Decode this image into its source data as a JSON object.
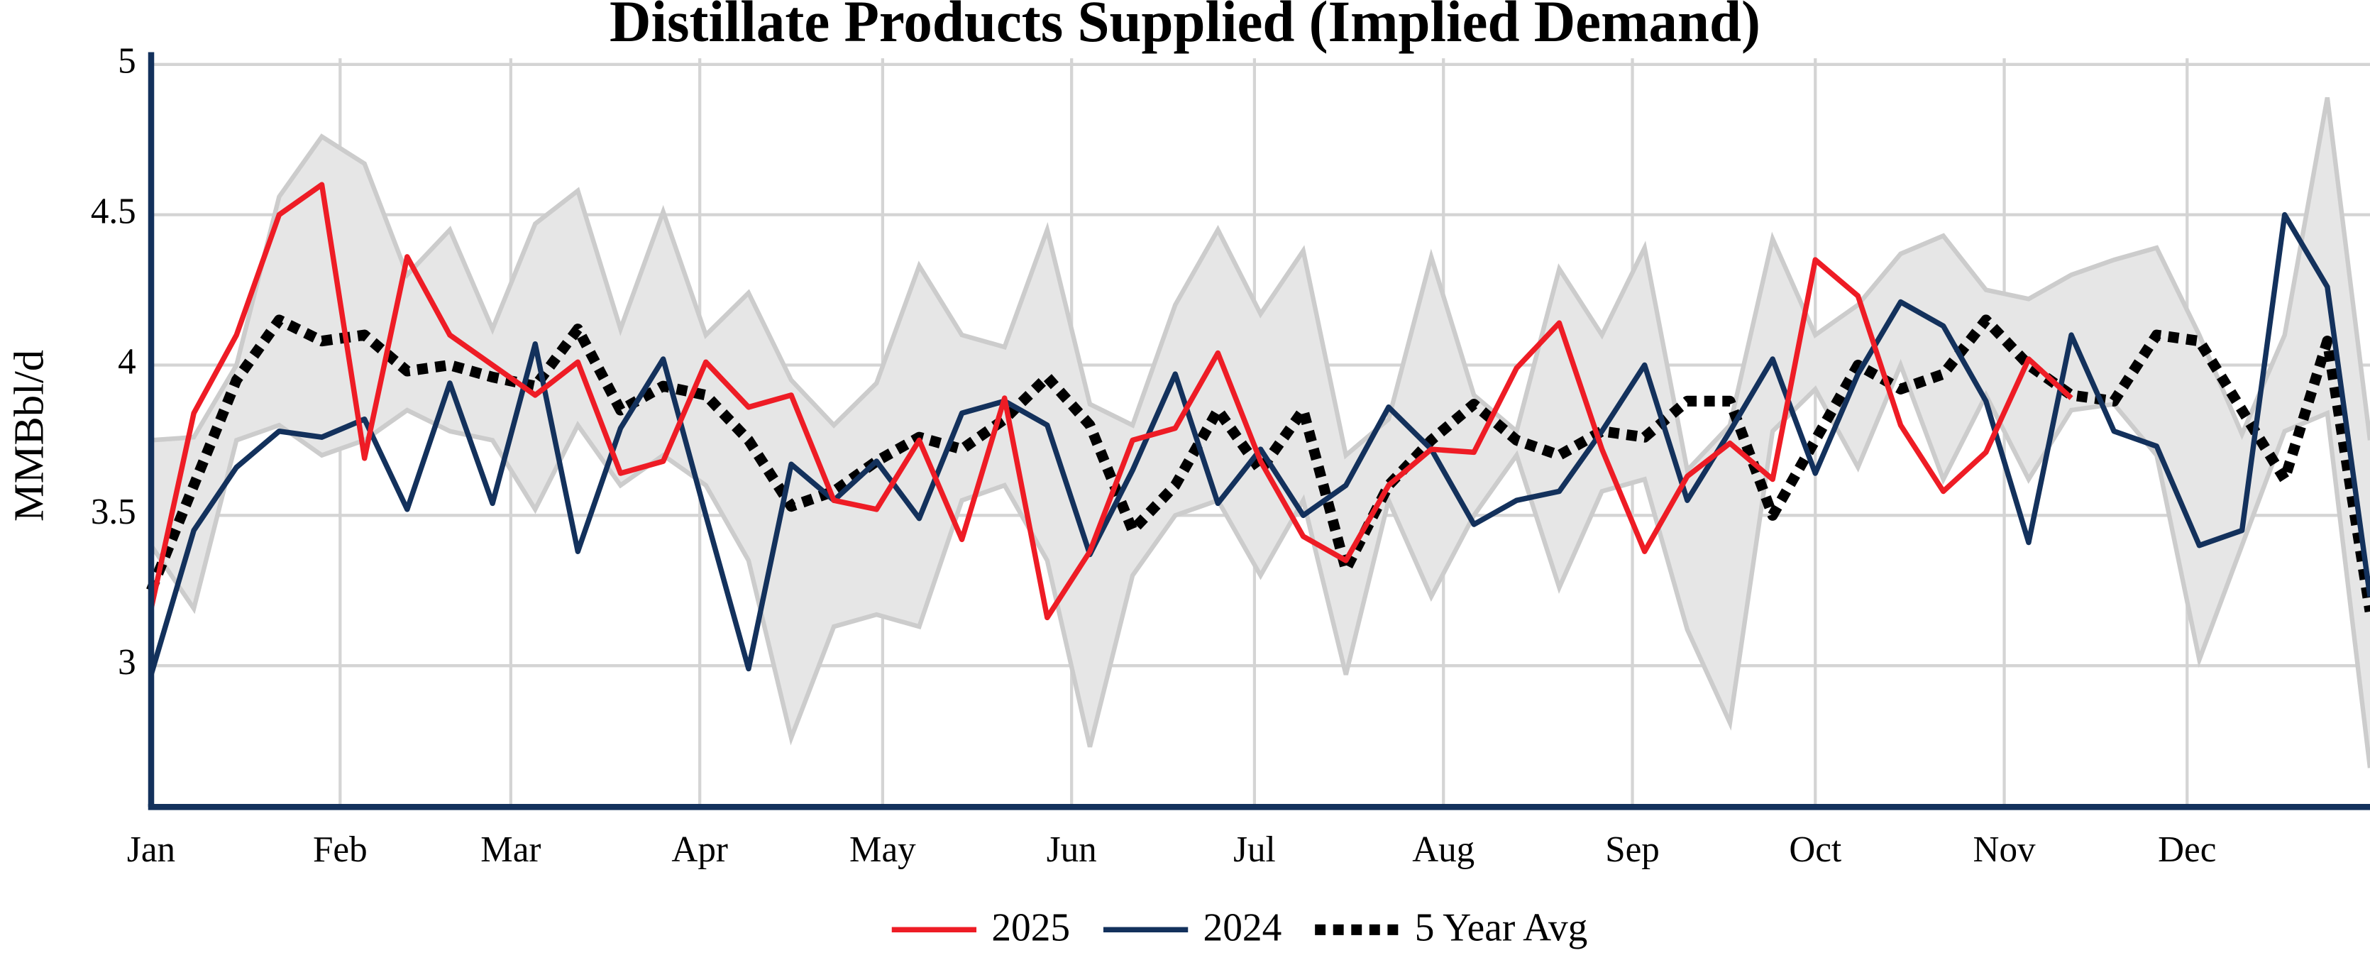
{
  "chart_data": {
    "type": "line",
    "title": "Distillate Products Supplied (Implied Demand)",
    "ylabel": "MMBbl/d",
    "x": [
      1,
      8,
      15,
      22,
      29,
      36,
      43,
      50,
      57,
      64,
      71,
      78,
      85,
      92,
      99,
      106,
      113,
      120,
      127,
      134,
      141,
      148,
      155,
      162,
      169,
      176,
      183,
      190,
      197,
      204,
      211,
      218,
      225,
      232,
      239,
      246,
      253,
      260,
      267,
      274,
      281,
      288,
      295,
      302,
      309,
      316,
      323,
      330,
      337,
      344,
      351,
      358,
      365
    ],
    "xlim": [
      1,
      365
    ],
    "xticks": [
      {
        "value": 1,
        "label": "Jan"
      },
      {
        "value": 32,
        "label": "Feb"
      },
      {
        "value": 60,
        "label": "Mar"
      },
      {
        "value": 91,
        "label": "Apr"
      },
      {
        "value": 121,
        "label": "May"
      },
      {
        "value": 152,
        "label": "Jun"
      },
      {
        "value": 182,
        "label": "Jul"
      },
      {
        "value": 213,
        "label": "Aug"
      },
      {
        "value": 244,
        "label": "Sep"
      },
      {
        "value": 274,
        "label": "Oct"
      },
      {
        "value": 305,
        "label": "Nov"
      },
      {
        "value": 335,
        "label": "Dec"
      }
    ],
    "ylim": [
      2.53,
      5
    ],
    "yticks": [
      3,
      3.5,
      4,
      4.5,
      5
    ],
    "grid": true,
    "range": {
      "color": "#e6e6e6",
      "edge_color": "#cccccc",
      "high": [
        3.75,
        3.76,
        4.0,
        4.56,
        4.76,
        4.67,
        4.3,
        4.45,
        4.12,
        4.47,
        4.58,
        4.12,
        4.51,
        4.1,
        4.24,
        3.95,
        3.8,
        3.94,
        4.33,
        4.1,
        4.06,
        4.45,
        3.87,
        3.8,
        4.2,
        4.45,
        4.17,
        4.38,
        3.7,
        3.82,
        4.36,
        3.9,
        3.78,
        4.32,
        4.1,
        4.39,
        3.65,
        3.8,
        4.42,
        4.1,
        4.2,
        4.37,
        4.43,
        4.25,
        4.22,
        4.3,
        4.35,
        4.39,
        4.1,
        3.77,
        4.1,
        4.89,
        3.75
      ],
      "low": [
        3.4,
        3.19,
        3.75,
        3.8,
        3.7,
        3.75,
        3.85,
        3.78,
        3.75,
        3.52,
        3.8,
        3.6,
        3.7,
        3.6,
        3.35,
        2.76,
        3.13,
        3.17,
        3.13,
        3.55,
        3.6,
        3.35,
        2.73,
        3.3,
        3.5,
        3.55,
        3.3,
        3.55,
        2.97,
        3.55,
        3.23,
        3.5,
        3.7,
        3.26,
        3.58,
        3.62,
        3.12,
        2.81,
        3.78,
        3.92,
        3.66,
        4.0,
        3.62,
        3.9,
        3.62,
        3.85,
        3.87,
        3.7,
        3.02,
        3.4,
        3.78,
        3.84,
        2.66
      ]
    },
    "series": [
      {
        "name": "2025",
        "color": "#ee1c25",
        "dash": false,
        "values": [
          3.19,
          3.84,
          4.1,
          4.5,
          4.6,
          3.69,
          4.36,
          4.1,
          4.0,
          3.9,
          4.01,
          3.64,
          3.68,
          4.01,
          3.86,
          3.9,
          3.55,
          3.52,
          3.75,
          3.42,
          3.89,
          3.16,
          3.38,
          3.75,
          3.79,
          4.04,
          3.68,
          3.43,
          3.35,
          3.6,
          3.72,
          3.71,
          3.99,
          4.14,
          3.72,
          3.38,
          3.63,
          3.74,
          3.62,
          4.35,
          4.23,
          3.8,
          3.58,
          3.71,
          4.02,
          3.89,
          null,
          null,
          null,
          null,
          null,
          null,
          null
        ]
      },
      {
        "name": "2024",
        "color": "#13315c",
        "dash": false,
        "values": [
          2.97,
          3.45,
          3.66,
          3.78,
          3.76,
          3.82,
          3.52,
          3.94,
          3.54,
          4.07,
          3.38,
          3.79,
          4.02,
          3.5,
          2.99,
          3.67,
          3.55,
          3.68,
          3.49,
          3.84,
          3.88,
          3.8,
          3.37,
          3.65,
          3.97,
          3.54,
          3.72,
          3.5,
          3.6,
          3.86,
          3.72,
          3.47,
          3.55,
          3.58,
          3.78,
          4.0,
          3.55,
          3.78,
          4.02,
          3.64,
          3.97,
          4.21,
          4.13,
          3.88,
          3.41,
          4.1,
          3.78,
          3.73,
          3.4,
          3.45,
          4.5,
          4.26,
          3.23
        ]
      },
      {
        "name": "5 Year Avg",
        "color": "#000000",
        "dash": true,
        "values": [
          3.25,
          3.6,
          3.95,
          4.15,
          4.08,
          4.1,
          3.98,
          4.0,
          3.96,
          3.93,
          4.12,
          3.85,
          3.93,
          3.9,
          3.75,
          3.53,
          3.58,
          3.68,
          3.76,
          3.72,
          3.82,
          3.96,
          3.8,
          3.45,
          3.6,
          3.85,
          3.65,
          3.85,
          3.32,
          3.6,
          3.75,
          3.87,
          3.75,
          3.7,
          3.78,
          3.76,
          3.88,
          3.88,
          3.5,
          3.75,
          4.0,
          3.92,
          3.97,
          4.15,
          4.0,
          3.9,
          3.88,
          4.1,
          4.08,
          3.85,
          3.62,
          4.08,
          3.18
        ]
      }
    ],
    "axis_color": "#13315c"
  }
}
